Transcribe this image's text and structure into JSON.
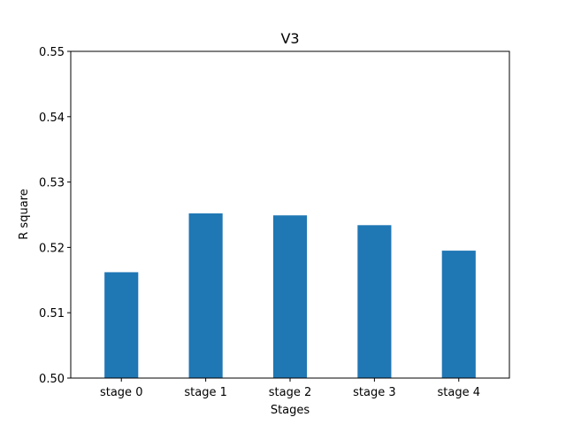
{
  "chart_data": {
    "type": "bar",
    "title": "V3",
    "xlabel": "Stages",
    "ylabel": "R square",
    "categories": [
      "stage 0",
      "stage 1",
      "stage 2",
      "stage 3",
      "stage 4"
    ],
    "values": [
      0.5162,
      0.5252,
      0.5249,
      0.5234,
      0.5195
    ],
    "ylim": [
      0.5,
      0.55
    ],
    "yticks": [
      "0.50",
      "0.51",
      "0.52",
      "0.53",
      "0.54",
      "0.55"
    ],
    "grid": false,
    "legend": "none",
    "bar_color": "#1f77b4"
  }
}
